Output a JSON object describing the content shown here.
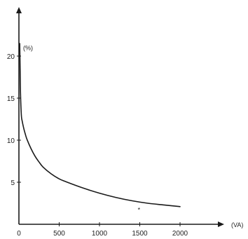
{
  "chart_data": {
    "type": "line",
    "title": "",
    "xlabel": "(VA)",
    "ylabel": "(%)",
    "x_ticks": [
      "0",
      "500",
      "1000",
      "1500",
      "2000"
    ],
    "y_ticks": [
      "5",
      "10",
      "15",
      "20"
    ],
    "xlim": [
      0,
      2300
    ],
    "ylim": [
      0,
      27
    ],
    "grid": false,
    "legend": "none",
    "series": [
      {
        "x": [
          10,
          15,
          20,
          30,
          40,
          60,
          80,
          100,
          150,
          200,
          250,
          300,
          400,
          500,
          600,
          800,
          1000,
          1200,
          1400,
          1600,
          1800,
          2000
        ],
        "y": [
          21.5,
          18.5,
          15.5,
          13.0,
          12.3,
          11.4,
          10.7,
          10.1,
          9.0,
          8.1,
          7.4,
          6.8,
          6.0,
          5.4,
          5.0,
          4.3,
          3.7,
          3.2,
          2.8,
          2.5,
          2.3,
          2.1
        ]
      }
    ],
    "annotations": [
      {
        "text": "*",
        "x": 1490,
        "y": 1.8
      }
    ],
    "colors": {
      "line": "#1a1a1a",
      "axis": "#1a1a1a",
      "text": "#222222"
    }
  }
}
